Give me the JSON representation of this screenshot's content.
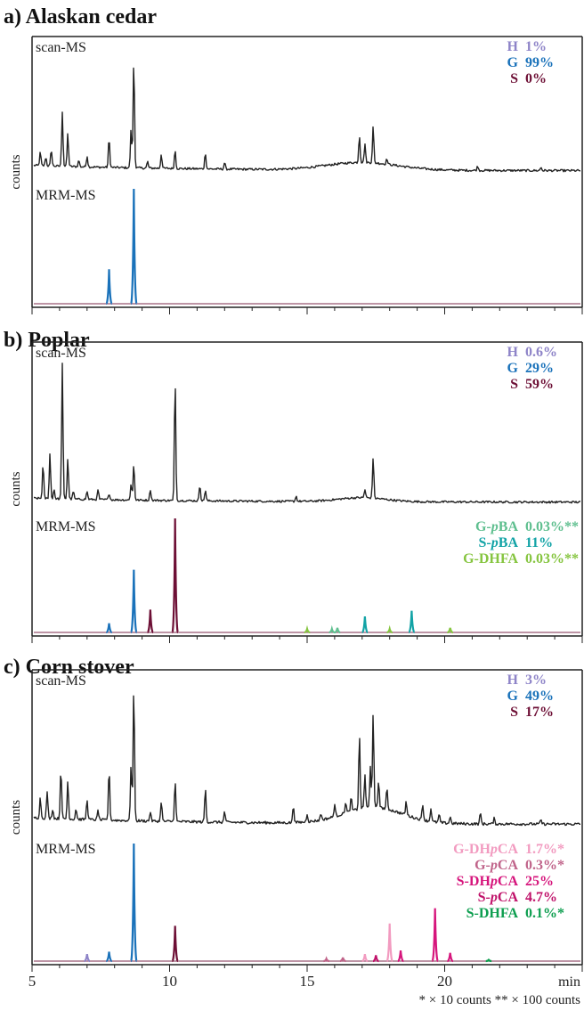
{
  "chart_data": {
    "type": "line",
    "x_axis": {
      "ticks": [
        5,
        10,
        15,
        20
      ],
      "label": "min",
      "range": [
        5,
        25
      ]
    },
    "y_label": "counts",
    "footnote": "* × 10 counts   ** × 100 counts",
    "colors": {
      "H": "#8e84c8",
      "G": "#1a72ba",
      "S": "#6d0f35",
      "scan": "#222222"
    },
    "panels": [
      {
        "title": "a) Alaskan cedar",
        "scan_label": "scan-MS",
        "mrm_label": "MRM-MS",
        "composition": [
          {
            "key": "H",
            "value": "1%",
            "color": "#8e84c8"
          },
          {
            "key": "G",
            "value": "99%",
            "color": "#1a72ba"
          },
          {
            "key": "S",
            "value": "0%",
            "color": "#6d0f35"
          }
        ],
        "mrm_legend": [],
        "scan_base": 0.05,
        "scan_noise": 0.02,
        "scan_peaks": [
          [
            5.3,
            0.12
          ],
          [
            5.5,
            0.08
          ],
          [
            5.7,
            0.15
          ],
          [
            6.1,
            0.5
          ],
          [
            6.3,
            0.3
          ],
          [
            6.7,
            0.06
          ],
          [
            7.0,
            0.1
          ],
          [
            7.8,
            0.27
          ],
          [
            8.6,
            0.35
          ],
          [
            8.7,
            1.0
          ],
          [
            9.2,
            0.06
          ],
          [
            9.7,
            0.13
          ],
          [
            10.2,
            0.17
          ],
          [
            11.3,
            0.15
          ],
          [
            12.0,
            0.06
          ],
          [
            16.9,
            0.25
          ],
          [
            17.1,
            0.17
          ],
          [
            17.4,
            0.33
          ],
          [
            17.9,
            0.05
          ],
          [
            21.2,
            0.04
          ],
          [
            23.5,
            0.03
          ]
        ],
        "scan_hump": {
          "center": 17.0,
          "width": 1.8,
          "height": 0.07
        },
        "mrm_peaks": [
          {
            "x": 7.8,
            "h": 0.3,
            "color": "#1a72ba"
          },
          {
            "x": 8.7,
            "h": 1.0,
            "color": "#1a72ba"
          }
        ]
      },
      {
        "title": "b) Poplar",
        "scan_label": "scan-MS",
        "mrm_label": "MRM-MS",
        "composition": [
          {
            "key": "H",
            "value": "0.6%",
            "color": "#8e84c8"
          },
          {
            "key": "G",
            "value": "29%",
            "color": "#1a72ba"
          },
          {
            "key": "S",
            "value": "59%",
            "color": "#6d0f35"
          }
        ],
        "mrm_legend": [
          {
            "label": "G-pBA",
            "value": "0.03%**",
            "color": "#5fbf8f"
          },
          {
            "label": "S-pBA",
            "value": "11%",
            "color": "#12a3a6"
          },
          {
            "label": "G-DHFA",
            "value": "0.03%**",
            "color": "#86c540"
          }
        ],
        "scan_base": 0.03,
        "scan_noise": 0.015,
        "scan_peaks": [
          [
            5.4,
            0.25
          ],
          [
            5.65,
            0.33
          ],
          [
            5.8,
            0.07
          ],
          [
            6.1,
            1.0
          ],
          [
            6.3,
            0.3
          ],
          [
            6.5,
            0.06
          ],
          [
            7.0,
            0.06
          ],
          [
            7.4,
            0.07
          ],
          [
            7.8,
            0.05
          ],
          [
            8.6,
            0.12
          ],
          [
            8.7,
            0.27
          ],
          [
            9.3,
            0.08
          ],
          [
            10.2,
            0.9
          ],
          [
            11.1,
            0.12
          ],
          [
            11.3,
            0.08
          ],
          [
            14.6,
            0.04
          ],
          [
            17.1,
            0.06
          ],
          [
            17.4,
            0.3
          ]
        ],
        "scan_hump": {
          "center": 17.0,
          "width": 1.2,
          "height": 0.03
        },
        "mrm_peaks": [
          {
            "x": 7.8,
            "h": 0.08,
            "color": "#1a72ba"
          },
          {
            "x": 8.7,
            "h": 0.55,
            "color": "#1a72ba"
          },
          {
            "x": 9.3,
            "h": 0.2,
            "color": "#6d0f35"
          },
          {
            "x": 10.2,
            "h": 1.0,
            "color": "#6d0f35"
          },
          {
            "x": 15.0,
            "h": 0.03,
            "color": "#86c540"
          },
          {
            "x": 15.9,
            "h": 0.03,
            "color": "#5fbf8f"
          },
          {
            "x": 16.1,
            "h": 0.04,
            "color": "#5fbf8f"
          },
          {
            "x": 17.1,
            "h": 0.14,
            "color": "#12a3a6"
          },
          {
            "x": 18.0,
            "h": 0.03,
            "color": "#86c540"
          },
          {
            "x": 18.8,
            "h": 0.19,
            "color": "#12a3a6"
          },
          {
            "x": 20.2,
            "h": 0.04,
            "color": "#86c540"
          }
        ]
      },
      {
        "title": "c) Corn stover",
        "scan_label": "scan-MS",
        "mrm_label": "MRM-MS",
        "composition": [
          {
            "key": "H",
            "value": "3%",
            "color": "#8e84c8"
          },
          {
            "key": "G",
            "value": "49%",
            "color": "#1a72ba"
          },
          {
            "key": "S",
            "value": "17%",
            "color": "#6d0f35"
          }
        ],
        "mrm_legend": [
          {
            "label": "G-DHpCA",
            "value": "1.7%*",
            "color": "#f29bc0"
          },
          {
            "label": "G-pCA",
            "value": "0.3%*",
            "color": "#c0648a"
          },
          {
            "label": "S-DHpCA",
            "value": "25%",
            "color": "#d6157c"
          },
          {
            "label": "S-pCA",
            "value": "4.7%",
            "color": "#c0126a"
          },
          {
            "label": "S-DHFA",
            "value": "0.1%*",
            "color": "#0d9e4f"
          }
        ],
        "scan_base": 0.05,
        "scan_noise": 0.02,
        "scan_peaks": [
          [
            5.3,
            0.15
          ],
          [
            5.55,
            0.2
          ],
          [
            5.75,
            0.07
          ],
          [
            6.05,
            0.38
          ],
          [
            6.3,
            0.28
          ],
          [
            6.6,
            0.08
          ],
          [
            7.0,
            0.15
          ],
          [
            7.4,
            0.07
          ],
          [
            7.8,
            0.38
          ],
          [
            8.6,
            0.42
          ],
          [
            8.7,
            1.0
          ],
          [
            9.3,
            0.07
          ],
          [
            9.7,
            0.15
          ],
          [
            10.2,
            0.3
          ],
          [
            11.3,
            0.25
          ],
          [
            12.0,
            0.08
          ],
          [
            14.5,
            0.13
          ],
          [
            15.0,
            0.06
          ],
          [
            15.5,
            0.05
          ],
          [
            16.0,
            0.09
          ],
          [
            16.4,
            0.08
          ],
          [
            16.6,
            0.1
          ],
          [
            16.9,
            0.55
          ],
          [
            17.1,
            0.25
          ],
          [
            17.3,
            0.3
          ],
          [
            17.4,
            0.7
          ],
          [
            17.6,
            0.2
          ],
          [
            17.9,
            0.15
          ],
          [
            18.6,
            0.1
          ],
          [
            19.2,
            0.12
          ],
          [
            19.5,
            0.1
          ],
          [
            19.8,
            0.06
          ],
          [
            20.2,
            0.05
          ],
          [
            21.3,
            0.08
          ],
          [
            21.8,
            0.04
          ],
          [
            23.5,
            0.03
          ]
        ],
        "scan_hump": {
          "center": 17.4,
          "width": 1.5,
          "height": 0.12
        },
        "mrm_peaks": [
          {
            "x": 7.0,
            "h": 0.06,
            "color": "#8e84c8"
          },
          {
            "x": 7.8,
            "h": 0.08,
            "color": "#1a72ba"
          },
          {
            "x": 8.7,
            "h": 1.0,
            "color": "#1a72ba"
          },
          {
            "x": 10.2,
            "h": 0.3,
            "color": "#6d0f35"
          },
          {
            "x": 15.7,
            "h": 0.02,
            "color": "#c0648a"
          },
          {
            "x": 16.3,
            "h": 0.03,
            "color": "#c0648a"
          },
          {
            "x": 17.1,
            "h": 0.06,
            "color": "#f29bc0"
          },
          {
            "x": 17.5,
            "h": 0.05,
            "color": "#c0126a"
          },
          {
            "x": 18.0,
            "h": 0.32,
            "color": "#f29bc0"
          },
          {
            "x": 18.4,
            "h": 0.09,
            "color": "#d6157c"
          },
          {
            "x": 19.65,
            "h": 0.45,
            "color": "#d6157c"
          },
          {
            "x": 20.2,
            "h": 0.07,
            "color": "#d6157c"
          },
          {
            "x": 21.6,
            "h": 0.01,
            "color": "#0d9e4f"
          }
        ]
      }
    ]
  }
}
